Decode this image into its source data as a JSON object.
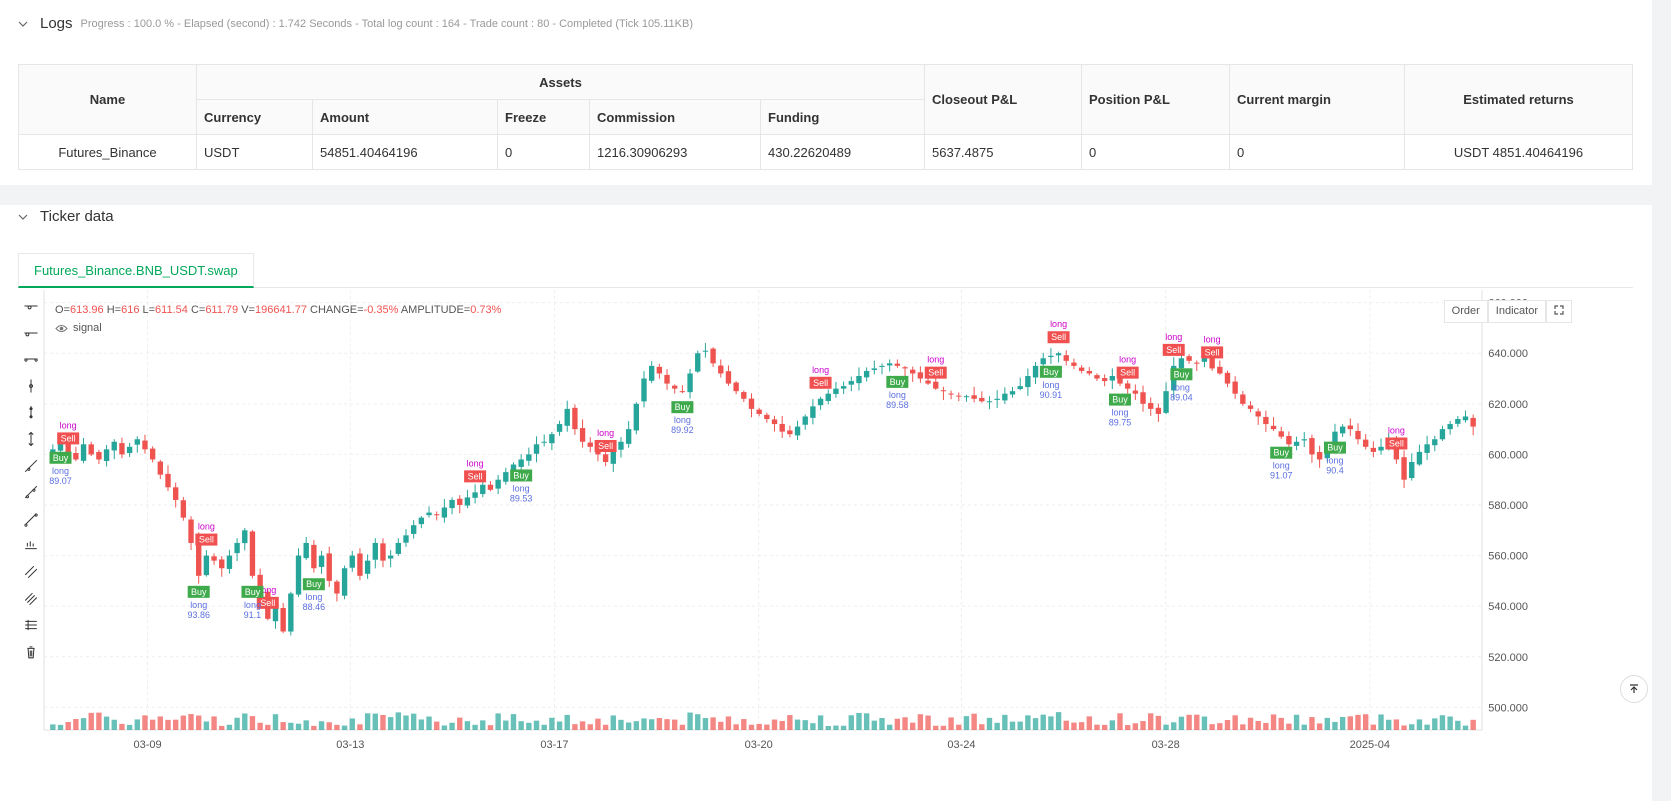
{
  "logs": {
    "title": "Logs",
    "meta": "Progress : 100.0 % - Elapsed (second) : 1.742 Seconds - Total log count : 164 - Trade count : 80 - Completed (Tick 105.11KB)"
  },
  "assets_table": {
    "headers": {
      "name": "Name",
      "assets": "Assets",
      "currency": "Currency",
      "amount": "Amount",
      "freeze": "Freeze",
      "commission": "Commission",
      "funding": "Funding",
      "closeout": "Closeout P&L",
      "position": "Position P&L",
      "margin": "Current margin",
      "returns": "Estimated returns"
    },
    "row": {
      "name": "Futures_Binance",
      "currency": "USDT",
      "amount": "54851.40464196",
      "freeze": "0",
      "commission": "1216.30906293",
      "funding": "430.22620489",
      "closeout": "5637.4875",
      "position": "0",
      "margin": "0",
      "returns": "USDT 4851.40464196"
    }
  },
  "ticker": {
    "title": "Ticker data",
    "tab": "Futures_Binance.BNB_USDT.swap",
    "ohlc": {
      "o_label": "O=",
      "o": "613.96",
      "h_label": "H=",
      "h": "616",
      "l_label": "L=",
      "l": "611.54",
      "c_label": "C=",
      "c": "611.79",
      "v_label": "V=",
      "v": "196641.77",
      "change_label": "CHANGE=",
      "change": "-0.35%",
      "amp_label": "AMPLITUDE=",
      "amp": "0.73%"
    },
    "signal_label": "signal",
    "buttons": {
      "order": "Order",
      "indicator": "Indicator"
    }
  },
  "colors": {
    "up": "#26a69a",
    "down": "#ef5350",
    "accent": "#00a85a",
    "buy": "#3faa4b",
    "sell": "#f05050",
    "long_text_buy": "#5b6fe0",
    "long_text_sell": "#cc00cc"
  },
  "toolbar_icons": [
    "horizontal-line-icon",
    "horizontal-ray-icon",
    "horizontal-segment-icon",
    "vertical-line-icon",
    "vertical-segment-icon",
    "vertical-arrow-icon",
    "trend-line-icon",
    "ray-line-icon",
    "segment-icon",
    "price-label-icon",
    "parallel-channel-icon",
    "multi-channel-icon",
    "fib-icon",
    "trash-icon"
  ],
  "chart_data": {
    "type": "candlestick",
    "symbol": "Futures_Binance.BNB_USDT.swap",
    "x_ticks": [
      "03-09",
      "03-13",
      "03-17",
      "03-20",
      "03-24",
      "03-28",
      "2025-04"
    ],
    "y_ticks": [
      "660.000",
      "640.000",
      "620.000",
      "600.000",
      "580.000",
      "560.000",
      "540.000",
      "520.000",
      "500.000"
    ],
    "ylim": [
      495,
      665
    ],
    "close": [
      602,
      605,
      600,
      598,
      604,
      600,
      598,
      602,
      605,
      600,
      603,
      606,
      602,
      598,
      592,
      587,
      582,
      575,
      565,
      552,
      560,
      558,
      555,
      560,
      565,
      570,
      552,
      545,
      535,
      540,
      530,
      545,
      560,
      565,
      555,
      560,
      550,
      545,
      555,
      560,
      552,
      558,
      565,
      558,
      560,
      565,
      568,
      572,
      575,
      577,
      576,
      579,
      582,
      580,
      583,
      585,
      588,
      586,
      590,
      593,
      596,
      598,
      600,
      604,
      605,
      608,
      612,
      618,
      610,
      605,
      603,
      600,
      597,
      601,
      605,
      610,
      620,
      630,
      635,
      632,
      628,
      626,
      625,
      632,
      640,
      641,
      636,
      632,
      628,
      625,
      622,
      618,
      616,
      614,
      612,
      609,
      608,
      611,
      615,
      619,
      622,
      624,
      626,
      627,
      629,
      631,
      633,
      634,
      635,
      636,
      635,
      634,
      632,
      630,
      628,
      626,
      625,
      624,
      623,
      623,
      622,
      621,
      621,
      622,
      624,
      625,
      627,
      631,
      635,
      638,
      639,
      640,
      637,
      635,
      633,
      632,
      630,
      629,
      631,
      628,
      626,
      624,
      620,
      618,
      616,
      625,
      635,
      638,
      637,
      636,
      640,
      634,
      632,
      628,
      624,
      620,
      618,
      615,
      612,
      610,
      607,
      604,
      605,
      606,
      600,
      598,
      604,
      609,
      611,
      610,
      606,
      603,
      601,
      603,
      606,
      598,
      590,
      597,
      601,
      604,
      606,
      610,
      612,
      614,
      615,
      611
    ]
  },
  "signals": [
    {
      "kind": "sell",
      "label": "Sell",
      "tag": "long"
    },
    {
      "kind": "buy",
      "label": "Buy",
      "tag": "long",
      "value": "89.07"
    },
    {
      "kind": "sell",
      "label": "Sell",
      "tag": "long"
    },
    {
      "kind": "buy",
      "label": "Buy",
      "tag": "long",
      "value": "93.86"
    },
    {
      "kind": "sell",
      "label": "Sell",
      "tag": "long"
    },
    {
      "kind": "buy",
      "label": "Buy",
      "tag": "long",
      "value": "91.1"
    },
    {
      "kind": "buy",
      "label": "Buy",
      "tag": "long",
      "value": "88.46"
    },
    {
      "kind": "sell",
      "label": "Sell",
      "tag": "long"
    },
    {
      "kind": "buy",
      "label": "Buy",
      "tag": "long",
      "value": "89.53"
    },
    {
      "kind": "sell",
      "label": "Sell",
      "tag": "long"
    },
    {
      "kind": "buy",
      "label": "Buy",
      "tag": "long",
      "value": "89.92"
    },
    {
      "kind": "sell",
      "label": "Sell",
      "tag": "long"
    },
    {
      "kind": "buy",
      "label": "Buy",
      "tag": "long",
      "value": "89.58"
    },
    {
      "kind": "sell",
      "label": "Sell",
      "tag": "long"
    },
    {
      "kind": "buy",
      "label": "Buy",
      "tag": "long",
      "value": "90.91"
    },
    {
      "kind": "sell",
      "label": "Sell",
      "tag": "long"
    },
    {
      "kind": "buy",
      "label": "Buy",
      "tag": "long",
      "value": "89.75"
    },
    {
      "kind": "sell",
      "label": "Sell",
      "tag": "long"
    },
    {
      "kind": "sell",
      "label": "Sell",
      "tag": "long"
    },
    {
      "kind": "buy",
      "label": "Buy",
      "tag": "long",
      "value": "89.04"
    },
    {
      "kind": "sell",
      "label": "Sell",
      "tag": "long"
    },
    {
      "kind": "buy",
      "label": "Buy",
      "tag": "long",
      "value": "91.07"
    },
    {
      "kind": "buy",
      "label": "Buy",
      "tag": "long",
      "value": "90.4"
    },
    {
      "kind": "sell",
      "label": "Sell",
      "tag": "long"
    }
  ]
}
